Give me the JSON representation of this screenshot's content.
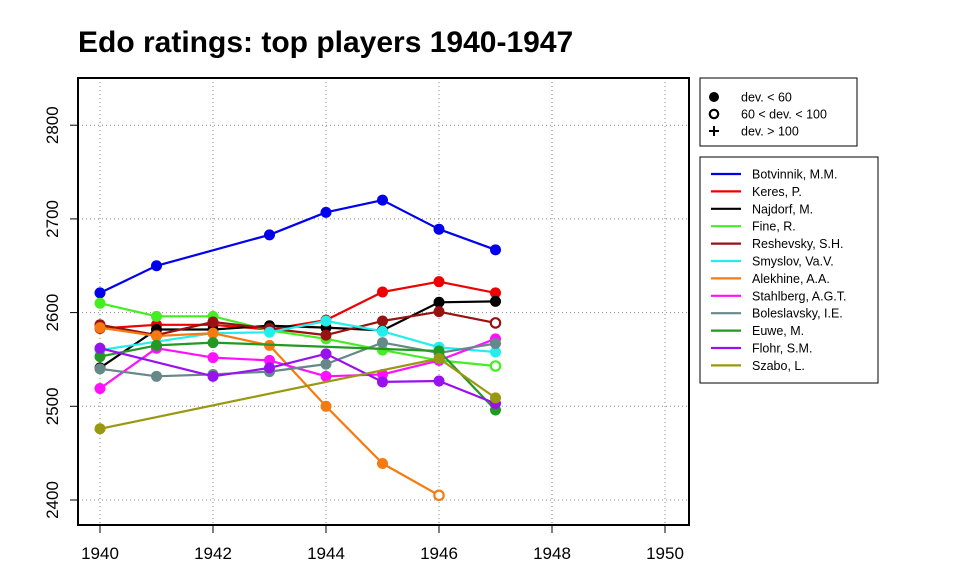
{
  "chart_data": {
    "type": "line",
    "title": "Edo ratings: top players 1940-1947",
    "xlabel": "",
    "ylabel": "",
    "xlim": [
      1939.6,
      1950.5
    ],
    "ylim": [
      2373,
      2847
    ],
    "x_ticks": [
      1940,
      1942,
      1944,
      1946,
      1948,
      1950
    ],
    "y_ticks": [
      2400,
      2500,
      2600,
      2700,
      2800
    ],
    "grid": "dotted",
    "symbol_legend": {
      "placement": "top-right-outside",
      "entries": [
        {
          "symbol": "filled-circle",
          "label": "dev. < 60"
        },
        {
          "symbol": "open-circle",
          "label": "60 < dev. < 100"
        },
        {
          "symbol": "plus",
          "label": "dev. > 100"
        }
      ]
    },
    "legend_placement": "right-outside",
    "series": [
      {
        "name": "Botvinnik, M.M.",
        "color": "#0000ee",
        "points": [
          {
            "x": 1940,
            "y": 2621,
            "m": "filled-circle"
          },
          {
            "x": 1941,
            "y": 2650,
            "m": "filled-circle"
          },
          {
            "x": 1943,
            "y": 2683,
            "m": "filled-circle"
          },
          {
            "x": 1944,
            "y": 2707,
            "m": "filled-circle"
          },
          {
            "x": 1945,
            "y": 2720,
            "m": "filled-circle"
          },
          {
            "x": 1946,
            "y": 2689,
            "m": "filled-circle"
          },
          {
            "x": 1947,
            "y": 2667,
            "m": "filled-circle"
          }
        ]
      },
      {
        "name": "Keres, P.",
        "color": "#ee0000",
        "points": [
          {
            "x": 1940,
            "y": 2583,
            "m": "filled-circle"
          },
          {
            "x": 1941,
            "y": 2587,
            "m": "filled-circle"
          },
          {
            "x": 1942,
            "y": 2587,
            "m": "filled-circle"
          },
          {
            "x": 1943,
            "y": 2582,
            "m": "filled-circle"
          },
          {
            "x": 1944,
            "y": 2592,
            "m": "filled-circle"
          },
          {
            "x": 1945,
            "y": 2622,
            "m": "filled-circle"
          },
          {
            "x": 1946,
            "y": 2633,
            "m": "filled-circle"
          },
          {
            "x": 1947,
            "y": 2621,
            "m": "filled-circle"
          }
        ]
      },
      {
        "name": "Najdorf, M.",
        "color": "#000000",
        "points": [
          {
            "x": 1940,
            "y": 2541,
            "m": "filled-circle"
          },
          {
            "x": 1941,
            "y": 2582,
            "m": "filled-circle"
          },
          {
            "x": 1942,
            "y": 2582,
            "m": "filled-circle"
          },
          {
            "x": 1943,
            "y": 2586,
            "m": "filled-circle"
          },
          {
            "x": 1944,
            "y": 2584,
            "m": "filled-circle"
          },
          {
            "x": 1945,
            "y": 2581,
            "m": "filled-circle"
          },
          {
            "x": 1946,
            "y": 2611,
            "m": "filled-circle"
          },
          {
            "x": 1947,
            "y": 2612,
            "m": "filled-circle"
          }
        ]
      },
      {
        "name": "Fine, R.",
        "color": "#44ee22",
        "points": [
          {
            "x": 1940,
            "y": 2610,
            "m": "filled-circle"
          },
          {
            "x": 1941,
            "y": 2596,
            "m": "filled-circle"
          },
          {
            "x": 1942,
            "y": 2596,
            "m": "filled-circle"
          },
          {
            "x": 1943,
            "y": 2581,
            "m": "filled-circle"
          },
          {
            "x": 1944,
            "y": 2572,
            "m": "filled-circle"
          },
          {
            "x": 1945,
            "y": 2560,
            "m": "filled-circle"
          },
          {
            "x": 1946,
            "y": 2549,
            "m": "filled-circle"
          },
          {
            "x": 1947,
            "y": 2543,
            "m": "open-circle"
          }
        ]
      },
      {
        "name": "Reshevsky, S.H.",
        "color": "#991111",
        "points": [
          {
            "x": 1940,
            "y": 2587,
            "m": "filled-circle"
          },
          {
            "x": 1941,
            "y": 2576,
            "m": "filled-circle"
          },
          {
            "x": 1942,
            "y": 2590,
            "m": "filled-circle"
          },
          {
            "x": 1943,
            "y": 2583,
            "m": "filled-circle"
          },
          {
            "x": 1944,
            "y": 2576,
            "m": "filled-circle"
          },
          {
            "x": 1945,
            "y": 2591,
            "m": "filled-circle"
          },
          {
            "x": 1946,
            "y": 2601,
            "m": "filled-circle"
          },
          {
            "x": 1947,
            "y": 2589,
            "m": "open-circle"
          }
        ]
      },
      {
        "name": "Smyslov, Va.V.",
        "color": "#22eeee",
        "points": [
          {
            "x": 1940,
            "y": 2560,
            "m": "filled-circle"
          },
          {
            "x": 1942,
            "y": 2578,
            "m": "filled-circle"
          },
          {
            "x": 1943,
            "y": 2579,
            "m": "filled-circle"
          },
          {
            "x": 1944,
            "y": 2591,
            "m": "filled-circle"
          },
          {
            "x": 1945,
            "y": 2580,
            "m": "filled-circle"
          },
          {
            "x": 1946,
            "y": 2563,
            "m": "filled-circle"
          },
          {
            "x": 1947,
            "y": 2558,
            "m": "filled-circle"
          }
        ]
      },
      {
        "name": "Alekhine, A.A.",
        "color": "#f57a11",
        "points": [
          {
            "x": 1940,
            "y": 2584,
            "m": "filled-circle"
          },
          {
            "x": 1941,
            "y": 2575,
            "m": "filled-circle"
          },
          {
            "x": 1942,
            "y": 2578,
            "m": "filled-circle"
          },
          {
            "x": 1943,
            "y": 2565,
            "m": "filled-circle"
          },
          {
            "x": 1944,
            "y": 2500,
            "m": "filled-circle"
          },
          {
            "x": 1945,
            "y": 2439,
            "m": "filled-circle"
          },
          {
            "x": 1946,
            "y": 2405,
            "m": "open-circle"
          }
        ]
      },
      {
        "name": "Stahlberg, A.G.T.",
        "color": "#ff11ff",
        "points": [
          {
            "x": 1940,
            "y": 2519,
            "m": "filled-circle"
          },
          {
            "x": 1941,
            "y": 2562,
            "m": "filled-circle"
          },
          {
            "x": 1942,
            "y": 2552,
            "m": "filled-circle"
          },
          {
            "x": 1943,
            "y": 2549,
            "m": "filled-circle"
          },
          {
            "x": 1944,
            "y": 2532,
            "m": "filled-circle"
          },
          {
            "x": 1945,
            "y": 2534,
            "m": "filled-circle"
          },
          {
            "x": 1946,
            "y": 2549,
            "m": "filled-circle"
          },
          {
            "x": 1947,
            "y": 2572,
            "m": "filled-circle"
          }
        ]
      },
      {
        "name": "Boleslavsky, I.E.",
        "color": "#668888",
        "points": [
          {
            "x": 1940,
            "y": 2540,
            "m": "filled-circle"
          },
          {
            "x": 1941,
            "y": 2532,
            "m": "filled-circle"
          },
          {
            "x": 1942,
            "y": 2534,
            "m": "filled-circle"
          },
          {
            "x": 1943,
            "y": 2537,
            "m": "filled-circle"
          },
          {
            "x": 1944,
            "y": 2545,
            "m": "filled-circle"
          },
          {
            "x": 1945,
            "y": 2568,
            "m": "filled-circle"
          },
          {
            "x": 1946,
            "y": 2557,
            "m": "filled-circle"
          },
          {
            "x": 1947,
            "y": 2567,
            "m": "filled-circle"
          }
        ]
      },
      {
        "name": "Euwe, M.",
        "color": "#229922",
        "points": [
          {
            "x": 1940,
            "y": 2553,
            "m": "filled-circle"
          },
          {
            "x": 1941,
            "y": 2565,
            "m": "filled-circle"
          },
          {
            "x": 1942,
            "y": 2568,
            "m": "filled-circle"
          },
          {
            "x": 1946,
            "y": 2559,
            "m": "filled-circle"
          },
          {
            "x": 1947,
            "y": 2496,
            "m": "filled-circle"
          }
        ]
      },
      {
        "name": "Flohr, S.M.",
        "color": "#9911ee",
        "points": [
          {
            "x": 1940,
            "y": 2562,
            "m": "filled-circle"
          },
          {
            "x": 1942,
            "y": 2532,
            "m": "filled-circle"
          },
          {
            "x": 1943,
            "y": 2541,
            "m": "filled-circle"
          },
          {
            "x": 1944,
            "y": 2556,
            "m": "filled-circle"
          },
          {
            "x": 1945,
            "y": 2526,
            "m": "filled-circle"
          },
          {
            "x": 1946,
            "y": 2527,
            "m": "filled-circle"
          },
          {
            "x": 1947,
            "y": 2503,
            "m": "filled-circle"
          }
        ]
      },
      {
        "name": "Szabo, L.",
        "color": "#999911",
        "points": [
          {
            "x": 1940,
            "y": 2476,
            "m": "filled-circle"
          },
          {
            "x": 1946,
            "y": 2551,
            "m": "filled-circle"
          },
          {
            "x": 1947,
            "y": 2509,
            "m": "filled-circle"
          }
        ]
      }
    ]
  }
}
